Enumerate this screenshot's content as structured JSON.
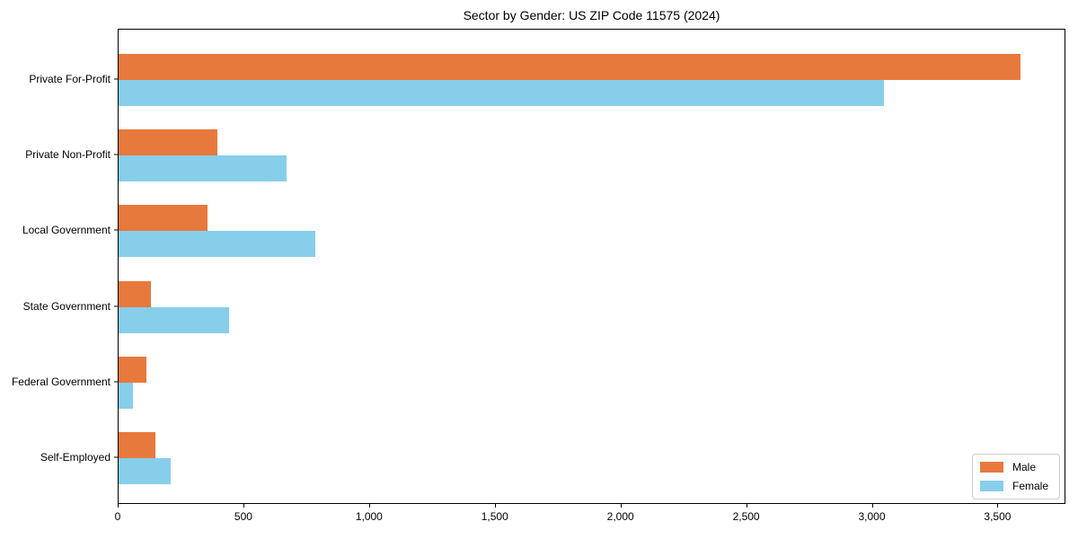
{
  "chart_data": {
    "type": "bar",
    "orientation": "horizontal",
    "title": "Sector by Gender: US ZIP Code 11575 (2024)",
    "categories": [
      "Private For-Profit",
      "Private Non-Profit",
      "Local Government",
      "State Government",
      "Federal Government",
      "Self-Employed"
    ],
    "series": [
      {
        "name": "Male",
        "color": "#E8793D",
        "values": [
          3589,
          392,
          354,
          129,
          111,
          147
        ]
      },
      {
        "name": "Female",
        "color": "#87CEEB",
        "values": [
          3045,
          669,
          783,
          440,
          57,
          207
        ]
      }
    ],
    "xlabel": "",
    "ylabel": "",
    "xlim": [
      0,
      3770
    ],
    "x_tick_values": [
      0,
      500,
      1000,
      1500,
      2000,
      2500,
      3000,
      3500
    ],
    "x_tick_labels": [
      "0",
      "500",
      "1,000",
      "1,500",
      "2,000",
      "2,500",
      "3,000",
      "3,500"
    ],
    "legend_position": "lower right",
    "grid": false,
    "colors": {
      "axis": "#000000",
      "legend_border": "#cccccc",
      "background": "#ffffff"
    }
  }
}
